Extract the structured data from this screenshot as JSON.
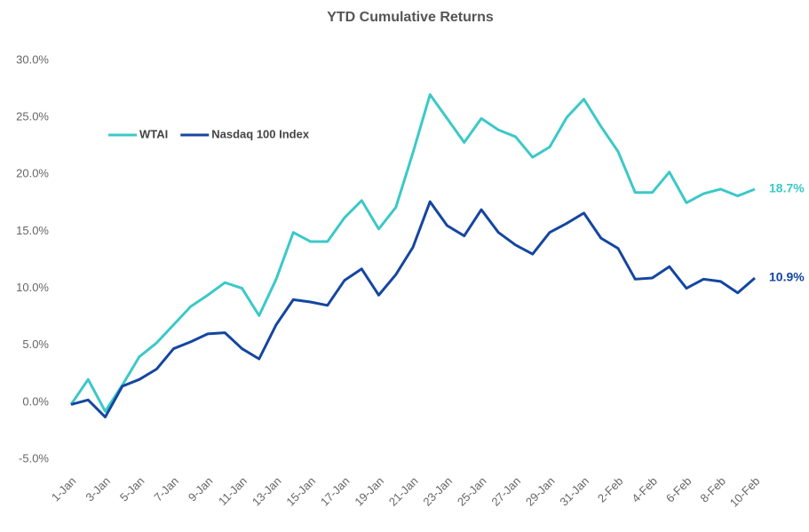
{
  "chart_data": {
    "type": "line",
    "title": "YTD Cumulative Returns",
    "categories": [
      "1-Jan",
      null,
      "3-Jan",
      null,
      "5-Jan",
      null,
      "7-Jan",
      null,
      "9-Jan",
      null,
      "11-Jan",
      null,
      "13-Jan",
      null,
      "15-Jan",
      null,
      "17-Jan",
      null,
      "19-Jan",
      null,
      "21-Jan",
      null,
      "23-Jan",
      null,
      "25-Jan",
      null,
      "27-Jan",
      null,
      "29-Jan",
      null,
      "31-Jan",
      null,
      "2-Feb",
      null,
      "4-Feb",
      null,
      "6-Feb",
      null,
      "8-Feb",
      null,
      "10-Feb"
    ],
    "series": [
      {
        "name": "WTAI",
        "color": "#3cc8c8",
        "values": [
          -0.2,
          2.0,
          -0.8,
          1.5,
          4.0,
          5.2,
          6.8,
          8.4,
          9.4,
          10.5,
          10.0,
          7.6,
          10.8,
          14.9,
          14.1,
          14.1,
          16.2,
          17.7,
          15.2,
          17.1,
          21.9,
          27.0,
          24.9,
          22.8,
          24.9,
          23.9,
          23.3,
          21.5,
          22.4,
          25.0,
          26.6,
          24.2,
          22.0,
          18.4,
          18.4,
          20.2,
          17.5,
          18.3,
          18.7,
          18.1,
          18.7
        ],
        "value_labels": [
          null,
          null,
          null,
          null,
          null,
          null,
          null,
          null,
          null,
          null,
          null,
          null,
          null,
          null,
          null,
          null,
          null,
          null,
          null,
          null,
          null,
          null,
          null,
          null,
          null,
          null,
          null,
          null,
          null,
          null,
          null,
          null,
          null,
          null,
          null,
          null,
          null,
          null,
          null,
          null,
          "18.7%"
        ]
      },
      {
        "name": "Nasdaq 100 Index",
        "color": "#1446a0",
        "values": [
          -0.2,
          0.2,
          -1.3,
          1.4,
          2.0,
          2.9,
          4.7,
          5.3,
          6.0,
          6.1,
          4.7,
          3.8,
          6.8,
          9.0,
          8.8,
          8.5,
          10.7,
          11.7,
          9.4,
          11.2,
          13.6,
          17.6,
          15.5,
          14.6,
          16.9,
          14.9,
          13.8,
          13.0,
          14.9,
          15.7,
          16.6,
          14.4,
          13.5,
          10.8,
          10.9,
          11.9,
          10.0,
          10.8,
          10.6,
          9.6,
          10.9
        ],
        "value_labels": [
          null,
          null,
          null,
          null,
          null,
          null,
          null,
          null,
          null,
          null,
          null,
          null,
          null,
          null,
          null,
          null,
          null,
          null,
          null,
          null,
          null,
          null,
          null,
          null,
          null,
          null,
          null,
          null,
          null,
          null,
          null,
          null,
          null,
          null,
          null,
          null,
          null,
          null,
          null,
          null,
          "10.9%"
        ]
      }
    ],
    "ylim": [
      -5,
      30
    ],
    "yticks": [
      {
        "value": -5,
        "label": "-5.0%"
      },
      {
        "value": 0,
        "label": "0.0%"
      },
      {
        "value": 5,
        "label": "5.0%"
      },
      {
        "value": 10,
        "label": "10.0%"
      },
      {
        "value": 15,
        "label": "15.0%"
      },
      {
        "value": 20,
        "label": "20.0%"
      },
      {
        "value": 25,
        "label": "25.0%"
      },
      {
        "value": 30,
        "label": "30.0%"
      }
    ],
    "grid": false,
    "legend": "top-left"
  }
}
